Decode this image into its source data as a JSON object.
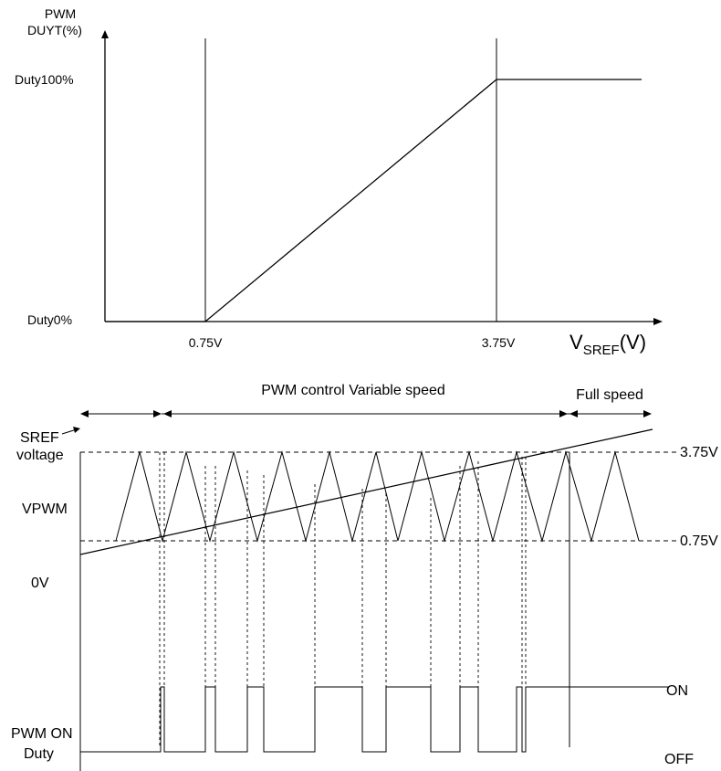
{
  "top_chart": {
    "y_axis_label_line1": "PWM",
    "y_axis_label_line2": "DUYT(%)",
    "y_tick_high": "Duty100%",
    "y_tick_low": "Duty0%",
    "x_tick_1": "0.75V",
    "x_tick_2": "3.75V",
    "x_axis_label_main": "V",
    "x_axis_label_sub": "SREF",
    "x_axis_label_unit": "(V)"
  },
  "bottom_diagram": {
    "region_variable": "PWM control Variable speed",
    "region_full": "Full speed",
    "label_sref_1": "SREF",
    "label_sref_2": "voltage",
    "label_vpwm": "VPWM",
    "label_zero": "0V",
    "level_high": "3.75V",
    "level_low": "0.75V",
    "label_on": "ON",
    "label_off": "OFF",
    "label_pwm_on_1": "PWM ON",
    "label_pwm_on_2": "Duty"
  },
  "chart_data": {
    "type": "line",
    "x": [
      0,
      0.75,
      3.75,
      5
    ],
    "series": [
      {
        "values": [
          0,
          0,
          100,
          100
        ]
      }
    ],
    "x_ticks": [
      "0.75V",
      "3.75V"
    ],
    "y_ticks": [
      "Duty0%",
      "Duty100%"
    ],
    "ylim": [
      0,
      100
    ]
  }
}
